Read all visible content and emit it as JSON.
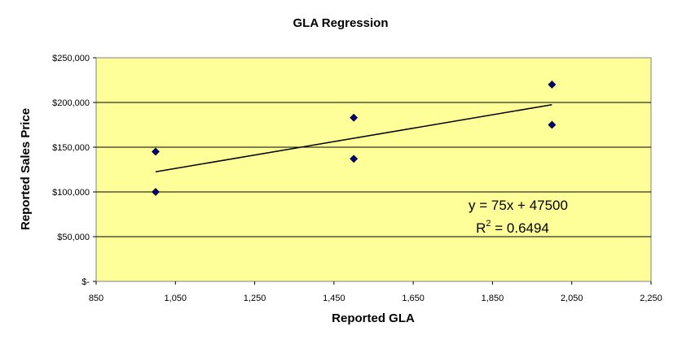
{
  "chart_data": {
    "type": "scatter",
    "title": "GLA Regression",
    "xlabel": "Reported GLA",
    "ylabel": "Reported Sales Price",
    "xlim": [
      850,
      2250
    ],
    "ylim": [
      0,
      250000
    ],
    "x_ticks": [
      850,
      1050,
      1250,
      1450,
      1650,
      1850,
      2050,
      2250
    ],
    "x_tick_labels": [
      "850",
      "1,050",
      "1,250",
      "1,450",
      "1,650",
      "1,850",
      "2,050",
      "2,250"
    ],
    "y_ticks": [
      0,
      50000,
      100000,
      150000,
      200000,
      250000
    ],
    "y_tick_labels": [
      "$-",
      "$50,000",
      "$100,000",
      "$150,000",
      "$200,000",
      "$250,000"
    ],
    "grid": "horizontal",
    "series": [
      {
        "points": [
          {
            "x": 1000,
            "y": 145000
          },
          {
            "x": 1000,
            "y": 100000
          },
          {
            "x": 1500,
            "y": 183000
          },
          {
            "x": 1500,
            "y": 137000
          },
          {
            "x": 2000,
            "y": 220000
          },
          {
            "x": 2000,
            "y": 175000
          }
        ]
      }
    ],
    "trendline": {
      "slope": 75,
      "intercept": 47500,
      "x_range": [
        1000,
        2000
      ],
      "equation": "y = 75x + 47500",
      "r2_prefix": "R",
      "r2_power": "2",
      "r2_value": " = 0.6494"
    },
    "colors": {
      "plot_background": "#FFFF99",
      "marker": "#000080",
      "gridline": "#000000",
      "trendline": "#000000"
    }
  }
}
